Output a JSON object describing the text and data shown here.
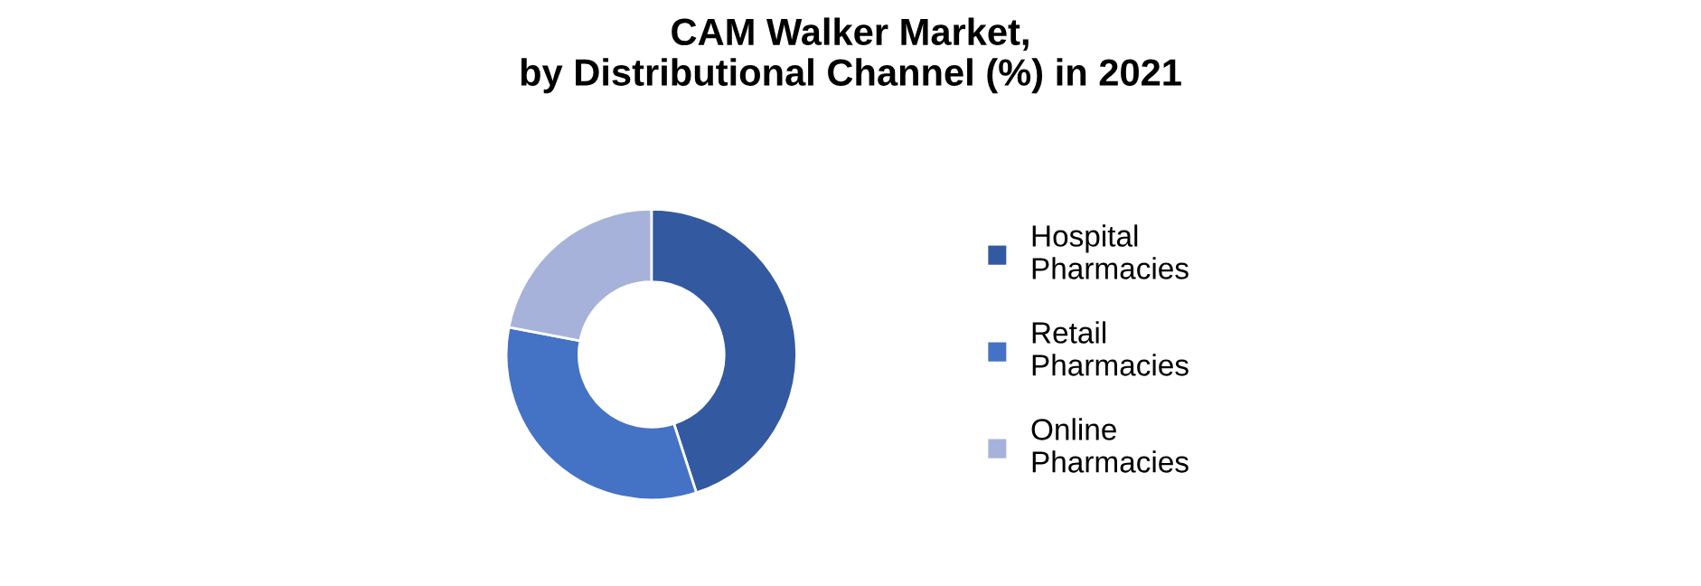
{
  "chart_data": {
    "type": "donut",
    "title": "CAM Walker Market,\nby Distributional Channel (%) in 2021",
    "categories": [
      "Hospital\nPharmacies",
      "Retail\nPharmacies",
      "Online\nPharmacies"
    ],
    "values": [
      45,
      33,
      22
    ],
    "colors": [
      "#335aa0",
      "#4472c4",
      "#a6b2da"
    ],
    "legend": "right"
  }
}
